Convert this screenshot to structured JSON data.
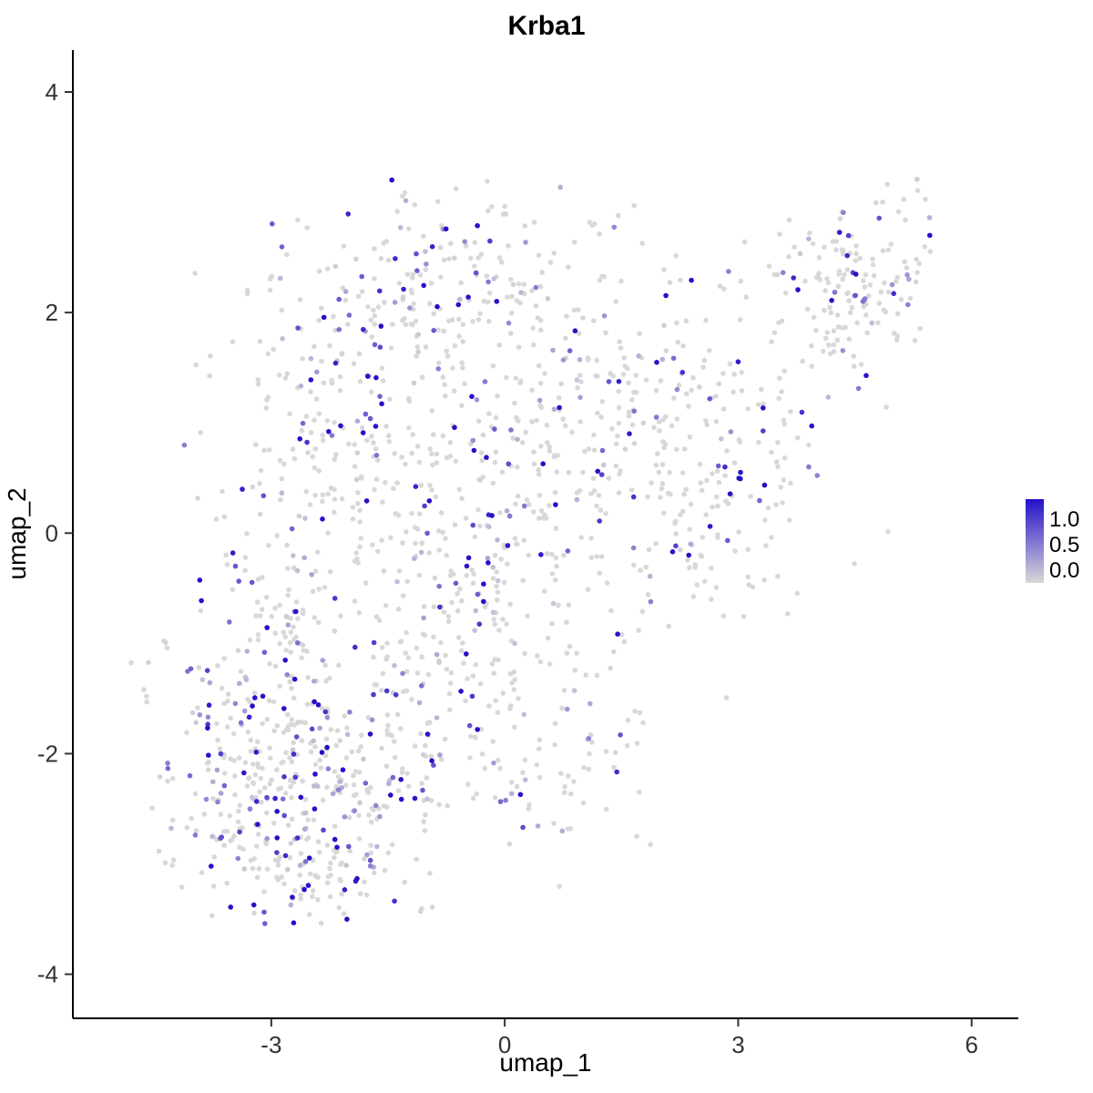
{
  "chart_data": {
    "type": "scatter",
    "title": "Krba1",
    "xlabel": "umap_1",
    "ylabel": "umap_2",
    "x_axis": {
      "range": [
        -5.55,
        6.6
      ],
      "ticks": [
        -3,
        0,
        3,
        6
      ],
      "tick_labels": [
        "-3",
        "0",
        "3",
        "6"
      ]
    },
    "y_axis": {
      "range": [
        -4.4,
        4.38
      ],
      "ticks": [
        -4,
        -2,
        0,
        2,
        4
      ],
      "tick_labels": [
        "-4",
        "-2",
        "0",
        "2",
        "4"
      ]
    },
    "legend": {
      "labels": [
        "1.0",
        "0.5",
        "0.0"
      ],
      "max": 1.0
    },
    "colors": {
      "low": "#D8D8D8",
      "high": "#2411C9",
      "axis": "#000000"
    },
    "value_max": 1.3,
    "extent": [
      -4.85,
      5.6,
      -3.55,
      3.25
    ],
    "seed": 42,
    "point_radius": 2.8,
    "clusters": [
      {
        "cx": -2.9,
        "cy": -2.4,
        "sdx": 0.78,
        "sdy": 0.55,
        "rot": -10,
        "n": 300,
        "pos_frac": 0.33
      },
      {
        "cx": -2.95,
        "cy": -0.9,
        "sdx": 0.5,
        "sdy": 0.7,
        "rot": 0,
        "n": 140,
        "pos_frac": 0.3
      },
      {
        "cx": -1.9,
        "cy": 1.2,
        "sdx": 0.85,
        "sdy": 0.8,
        "rot": 0,
        "n": 250,
        "pos_frac": 0.3
      },
      {
        "cx": -0.3,
        "cy": 2.25,
        "sdx": 0.9,
        "sdy": 0.5,
        "rot": 0,
        "n": 170,
        "pos_frac": 0.28
      },
      {
        "cx": -0.5,
        "cy": -0.8,
        "sdx": 0.85,
        "sdy": 0.8,
        "rot": 0,
        "n": 230,
        "pos_frac": 0.25
      },
      {
        "cx": 0.7,
        "cy": 0.6,
        "sdx": 0.8,
        "sdy": 0.8,
        "rot": 0,
        "n": 140,
        "pos_frac": 0.25
      },
      {
        "cx": 0.8,
        "cy": -2.0,
        "sdx": 0.65,
        "sdy": 0.55,
        "rot": 0,
        "n": 70,
        "pos_frac": 0.22
      },
      {
        "cx": -1.6,
        "cy": -1.9,
        "sdx": 0.6,
        "sdy": 0.5,
        "rot": 0,
        "n": 90,
        "pos_frac": 0.28
      },
      {
        "cx": -2.4,
        "cy": -3.05,
        "sdx": 0.5,
        "sdy": 0.28,
        "rot": 0,
        "n": 60,
        "pos_frac": 0.3
      },
      {
        "cx": 1.9,
        "cy": 1.2,
        "sdx": 0.7,
        "sdy": 0.6,
        "rot": 20,
        "n": 130,
        "pos_frac": 0.22
      },
      {
        "cx": 2.9,
        "cy": 0.2,
        "sdx": 0.95,
        "sdy": 0.5,
        "rot": 33,
        "n": 120,
        "pos_frac": 0.18
      },
      {
        "cx": 4.5,
        "cy": 2.2,
        "sdx": 0.6,
        "sdy": 0.45,
        "rot": 25,
        "n": 170,
        "pos_frac": 0.2
      },
      {
        "cx": -4.55,
        "cy": -1.25,
        "sdx": 0.1,
        "sdy": 0.15,
        "rot": 0,
        "n": 5,
        "pos_frac": 0.1
      }
    ]
  }
}
